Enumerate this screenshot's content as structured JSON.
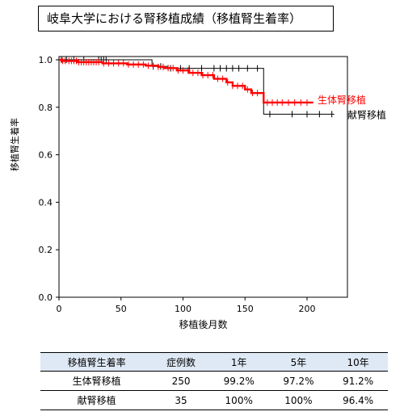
{
  "chart_data": {
    "type": "line",
    "title": "岐阜大学における腎移植成績（移植腎生着率）",
    "xlabel": "移植後月数",
    "ylabel": "移植腎生着率",
    "xlim": [
      0,
      230
    ],
    "ylim": [
      0.0,
      1.0
    ],
    "xticks": [
      "0",
      "50",
      "100",
      "150",
      "200"
    ],
    "yticks": [
      "0.0",
      "0.2",
      "0.4",
      "0.6",
      "0.8",
      "1.0"
    ],
    "grid": false,
    "series": [
      {
        "name": "生体腎移植",
        "color": "#ff0000",
        "points": [
          [
            0,
            1.0
          ],
          [
            2,
            0.995
          ],
          [
            15,
            0.99
          ],
          [
            35,
            0.985
          ],
          [
            55,
            0.98
          ],
          [
            70,
            0.975
          ],
          [
            80,
            0.97
          ],
          [
            85,
            0.965
          ],
          [
            95,
            0.955
          ],
          [
            105,
            0.945
          ],
          [
            115,
            0.935
          ],
          [
            125,
            0.92
          ],
          [
            135,
            0.905
          ],
          [
            140,
            0.89
          ],
          [
            150,
            0.875
          ],
          [
            155,
            0.86
          ],
          [
            165,
            0.82
          ],
          [
            205,
            0.82
          ]
        ],
        "censor_x": [
          3,
          5,
          8,
          10,
          12,
          14,
          16,
          18,
          20,
          22,
          24,
          26,
          28,
          30,
          32,
          36,
          40,
          44,
          48,
          52,
          56,
          60,
          64,
          68,
          72,
          76,
          80,
          84,
          88,
          92,
          96,
          100,
          104,
          108,
          112,
          116,
          120,
          124,
          128,
          132,
          136,
          140,
          144,
          148,
          152,
          156,
          160,
          168,
          172,
          176,
          180,
          185,
          190,
          195,
          200
        ]
      },
      {
        "name": "献腎移植",
        "color": "#000000",
        "points": [
          [
            0,
            1.0
          ],
          [
            75,
            1.0
          ],
          [
            75,
            0.972
          ],
          [
            88,
            0.972
          ],
          [
            88,
            0.964
          ],
          [
            165,
            0.964
          ],
          [
            165,
            0.771
          ],
          [
            222,
            0.771
          ]
        ],
        "censor_x": [
          2,
          6,
          12,
          20,
          32,
          34,
          36,
          38,
          76,
          82,
          90,
          98,
          105,
          115,
          125,
          130,
          135,
          140,
          145,
          152,
          160,
          170,
          188,
          200,
          210,
          220
        ]
      }
    ]
  },
  "table": {
    "headers": [
      "移植腎生着率",
      "症例数",
      "1年",
      "5年",
      "10年"
    ],
    "rows": [
      [
        "生体腎移植",
        "250",
        "99.2%",
        "97.2%",
        "91.2%"
      ],
      [
        "献腎移植",
        "35",
        "100%",
        "100%",
        "96.4%"
      ]
    ]
  }
}
